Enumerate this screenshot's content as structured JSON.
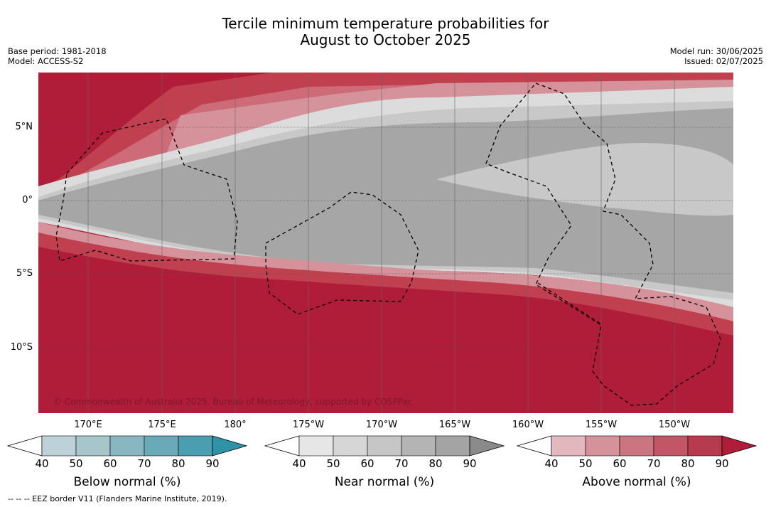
{
  "title_line1": "Tercile minimum temperature probabilities for",
  "title_line2": "August to October 2025",
  "base_period": "Base period: 1981-2018",
  "model": "Model: ACCESS-S2",
  "model_run": "Model run: 30/06/2025",
  "issued": "Issued: 02/07/2025",
  "copyright": "© Commonwealth of Australia 2025, Bureau of Meteorology, supported by COSPPac",
  "eez_note": "-- -- -- EEZ border V11 (Flanders Marine Institute, 2019).",
  "lat_labels": [
    "5°N",
    "0°",
    "5°S",
    "10°S"
  ],
  "lon_labels": [
    "170°E",
    "175°E",
    "180°",
    "175°W",
    "170°W",
    "165°W",
    "160°W",
    "155°W",
    "150°W"
  ],
  "colorbars": [
    {
      "title": "Below normal (%)",
      "ticks": [
        "40",
        "50",
        "60",
        "70",
        "80",
        "90"
      ],
      "colors": [
        "#ffffff",
        "#bcd2d8",
        "#a6c6cc",
        "#89b7c1",
        "#6aa9b8",
        "#4a9eb0",
        "#2e93a6"
      ]
    },
    {
      "title": "Near normal (%)",
      "ticks": [
        "40",
        "50",
        "60",
        "70",
        "80",
        "90"
      ],
      "colors": [
        "#ffffff",
        "#e6e6e6",
        "#d6d6d6",
        "#c6c6c6",
        "#b4b4b4",
        "#a4a4a4",
        "#8a8a8a"
      ]
    },
    {
      "title": "Above normal (%)",
      "ticks": [
        "40",
        "50",
        "60",
        "70",
        "80",
        "90"
      ],
      "colors": [
        "#ffffff",
        "#e2b7bd",
        "#d6929b",
        "#cb7581",
        "#c25566",
        "#b83a4d",
        "#b01d38"
      ]
    }
  ]
}
